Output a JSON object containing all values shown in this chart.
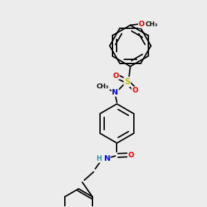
{
  "background_color": "#ececec",
  "bond_color": "#000000",
  "atom_colors": {
    "N": "#0000ff",
    "O": "#ff0000",
    "S": "#bbbb00",
    "H": "#339999",
    "C": "#000000"
  },
  "figsize": [
    3.0,
    3.0
  ],
  "dpi": 100
}
